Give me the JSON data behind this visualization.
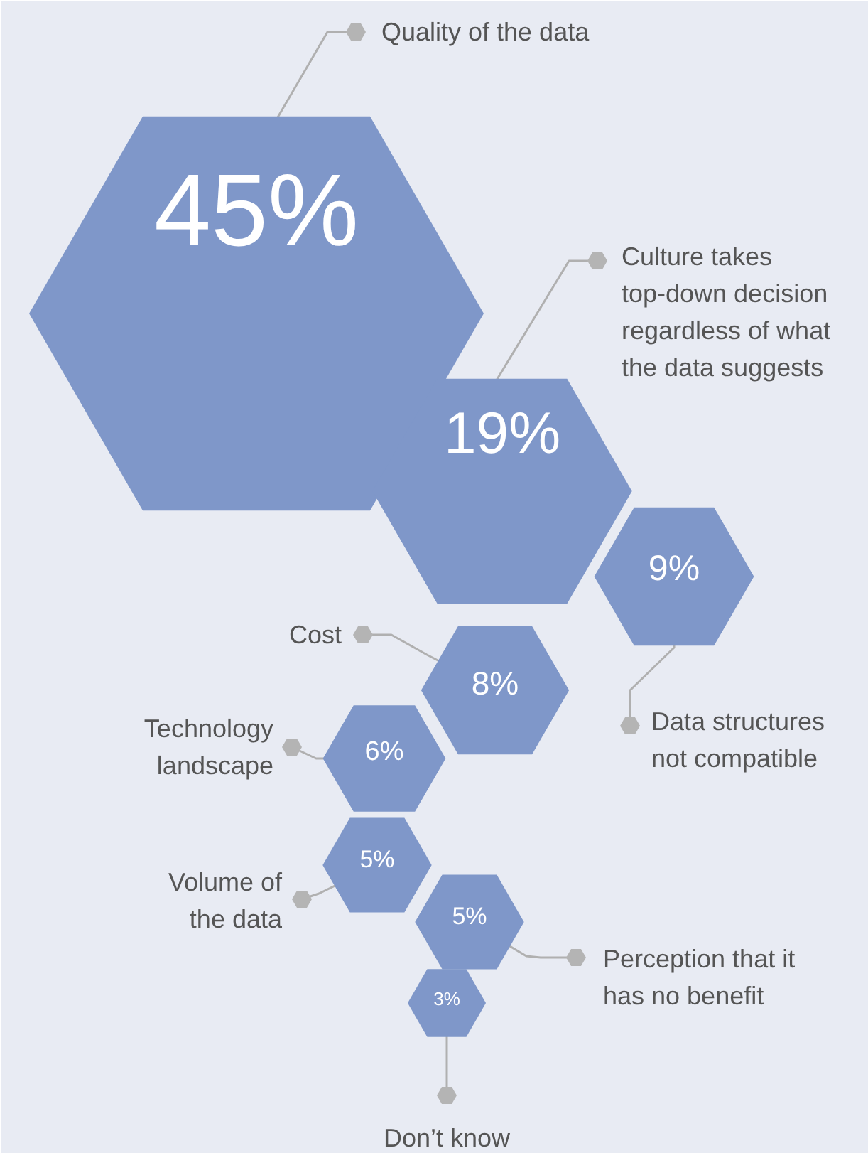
{
  "chart_data": {
    "type": "other",
    "categories": [
      "Quality of the data",
      "Culture takes\ntop-down decision\nregardless of what\nthe data suggests",
      "Data structures\nnot compatible",
      "Cost",
      "Technology\nlandscape",
      "Volume of\nthe data",
      "Perception that it\nhas no benefit",
      "Don’t know"
    ],
    "values": [
      45,
      19,
      9,
      8,
      6,
      5,
      5,
      3
    ],
    "value_labels": [
      "45%",
      "19%",
      "9%",
      "8%",
      "6%",
      "5%",
      "5%",
      "3%"
    ],
    "color": "#7f97c9"
  }
}
